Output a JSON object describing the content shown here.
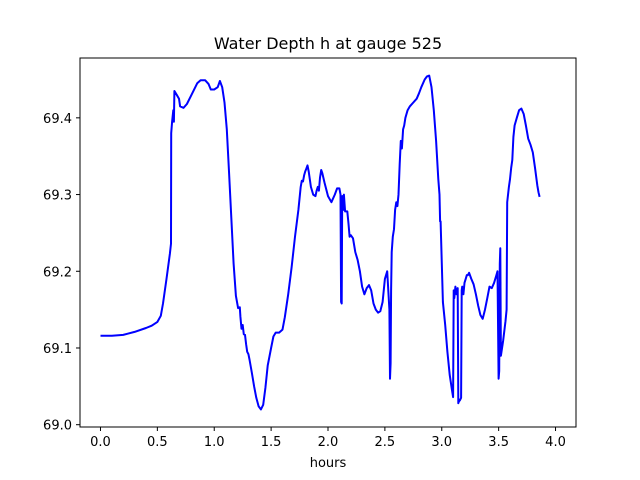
{
  "chart_data": {
    "type": "line",
    "title": "Water Depth h at gauge 525",
    "xlabel": "hours",
    "ylabel": "",
    "xlim": [
      -0.18,
      4.18
    ],
    "ylim": [
      68.997,
      69.478
    ],
    "xticks": [
      0.0,
      0.5,
      1.0,
      1.5,
      2.0,
      2.5,
      3.0,
      3.5,
      4.0
    ],
    "xtick_labels": [
      "0.0",
      "0.5",
      "1.0",
      "1.5",
      "2.0",
      "2.5",
      "3.0",
      "3.5",
      "4.0"
    ],
    "yticks": [
      69.0,
      69.1,
      69.2,
      69.3,
      69.4
    ],
    "ytick_labels": [
      "69.0",
      "69.1",
      "69.2",
      "69.3",
      "69.4"
    ],
    "grid": false,
    "color": "#0000ff",
    "series": [
      {
        "points": [
          [
            0.0,
            69.116
          ],
          [
            0.1,
            69.116
          ],
          [
            0.2,
            69.117
          ],
          [
            0.3,
            69.121
          ],
          [
            0.4,
            69.126
          ],
          [
            0.45,
            69.129
          ],
          [
            0.5,
            69.134
          ],
          [
            0.53,
            69.142
          ],
          [
            0.55,
            69.158
          ],
          [
            0.58,
            69.19
          ],
          [
            0.61,
            69.223
          ],
          [
            0.62,
            69.236
          ],
          [
            0.622,
            69.38
          ],
          [
            0.63,
            69.395
          ],
          [
            0.64,
            69.41
          ],
          [
            0.645,
            69.395
          ],
          [
            0.65,
            69.435
          ],
          [
            0.67,
            69.43
          ],
          [
            0.69,
            69.425
          ],
          [
            0.7,
            69.415
          ],
          [
            0.73,
            69.413
          ],
          [
            0.76,
            69.418
          ],
          [
            0.8,
            69.43
          ],
          [
            0.85,
            69.445
          ],
          [
            0.88,
            69.449
          ],
          [
            0.92,
            69.449
          ],
          [
            0.95,
            69.444
          ],
          [
            0.97,
            69.437
          ],
          [
            1.0,
            69.437
          ],
          [
            1.03,
            69.44
          ],
          [
            1.05,
            69.448
          ],
          [
            1.07,
            69.44
          ],
          [
            1.09,
            69.42
          ],
          [
            1.11,
            69.385
          ],
          [
            1.13,
            69.33
          ],
          [
            1.15,
            69.27
          ],
          [
            1.17,
            69.21
          ],
          [
            1.19,
            69.168
          ],
          [
            1.21,
            69.152
          ],
          [
            1.225,
            69.153
          ],
          [
            1.23,
            69.141
          ],
          [
            1.24,
            69.125
          ],
          [
            1.25,
            69.13
          ],
          [
            1.26,
            69.118
          ],
          [
            1.27,
            69.117
          ],
          [
            1.28,
            69.105
          ],
          [
            1.29,
            69.095
          ],
          [
            1.3,
            69.092
          ],
          [
            1.31,
            69.085
          ],
          [
            1.33,
            69.068
          ],
          [
            1.35,
            69.05
          ],
          [
            1.37,
            69.035
          ],
          [
            1.39,
            69.024
          ],
          [
            1.41,
            69.02
          ],
          [
            1.43,
            69.026
          ],
          [
            1.45,
            69.048
          ],
          [
            1.47,
            69.077
          ],
          [
            1.5,
            69.1
          ],
          [
            1.52,
            69.115
          ],
          [
            1.54,
            69.12
          ],
          [
            1.57,
            69.12
          ],
          [
            1.6,
            69.124
          ],
          [
            1.62,
            69.14
          ],
          [
            1.65,
            69.17
          ],
          [
            1.68,
            69.205
          ],
          [
            1.71,
            69.245
          ],
          [
            1.74,
            69.28
          ],
          [
            1.76,
            69.31
          ],
          [
            1.77,
            69.318
          ],
          [
            1.78,
            69.317
          ],
          [
            1.79,
            69.325
          ],
          [
            1.8,
            69.33
          ],
          [
            1.81,
            69.334
          ],
          [
            1.82,
            69.338
          ],
          [
            1.83,
            69.33
          ],
          [
            1.85,
            69.31
          ],
          [
            1.87,
            69.3
          ],
          [
            1.89,
            69.298
          ],
          [
            1.9,
            69.305
          ],
          [
            1.91,
            69.31
          ],
          [
            1.92,
            69.305
          ],
          [
            1.93,
            69.322
          ],
          [
            1.94,
            69.332
          ],
          [
            1.95,
            69.328
          ],
          [
            1.97,
            69.315
          ],
          [
            2.0,
            69.298
          ],
          [
            2.03,
            69.29
          ],
          [
            2.06,
            69.3
          ],
          [
            2.08,
            69.308
          ],
          [
            2.1,
            69.308
          ],
          [
            2.11,
            69.3
          ],
          [
            2.115,
            69.16
          ],
          [
            2.12,
            69.158
          ],
          [
            2.125,
            69.298
          ],
          [
            2.13,
            69.298
          ],
          [
            2.135,
            69.28
          ],
          [
            2.14,
            69.3
          ],
          [
            2.15,
            69.278
          ],
          [
            2.17,
            69.278
          ],
          [
            2.18,
            69.262
          ],
          [
            2.19,
            69.245
          ],
          [
            2.2,
            69.247
          ],
          [
            2.22,
            69.243
          ],
          [
            2.24,
            69.225
          ],
          [
            2.26,
            69.215
          ],
          [
            2.28,
            69.2
          ],
          [
            2.3,
            69.18
          ],
          [
            2.32,
            69.17
          ],
          [
            2.34,
            69.178
          ],
          [
            2.36,
            69.182
          ],
          [
            2.38,
            69.175
          ],
          [
            2.4,
            69.158
          ],
          [
            2.42,
            69.15
          ],
          [
            2.44,
            69.146
          ],
          [
            2.46,
            69.148
          ],
          [
            2.48,
            69.16
          ],
          [
            2.5,
            69.19
          ],
          [
            2.52,
            69.2
          ],
          [
            2.54,
            69.15
          ],
          [
            2.545,
            69.06
          ],
          [
            2.55,
            69.08
          ],
          [
            2.555,
            69.175
          ],
          [
            2.56,
            69.225
          ],
          [
            2.57,
            69.245
          ],
          [
            2.58,
            69.255
          ],
          [
            2.59,
            69.28
          ],
          [
            2.6,
            69.29
          ],
          [
            2.61,
            69.285
          ],
          [
            2.62,
            69.3
          ],
          [
            2.63,
            69.34
          ],
          [
            2.64,
            69.37
          ],
          [
            2.65,
            69.36
          ],
          [
            2.66,
            69.385
          ],
          [
            2.67,
            69.39
          ],
          [
            2.68,
            69.4
          ],
          [
            2.7,
            69.41
          ],
          [
            2.72,
            69.415
          ],
          [
            2.75,
            69.42
          ],
          [
            2.78,
            69.425
          ],
          [
            2.8,
            69.432
          ],
          [
            2.82,
            69.44
          ],
          [
            2.85,
            69.45
          ],
          [
            2.87,
            69.454
          ],
          [
            2.89,
            69.455
          ],
          [
            2.91,
            69.44
          ],
          [
            2.93,
            69.41
          ],
          [
            2.95,
            69.37
          ],
          [
            2.97,
            69.32
          ],
          [
            2.98,
            69.3
          ],
          [
            2.985,
            69.265
          ],
          [
            2.99,
            69.265
          ],
          [
            3.0,
            69.21
          ],
          [
            3.01,
            69.16
          ],
          [
            3.03,
            69.13
          ],
          [
            3.05,
            69.095
          ],
          [
            3.07,
            69.065
          ],
          [
            3.09,
            69.045
          ],
          [
            3.1,
            69.036
          ],
          [
            3.105,
            69.175
          ],
          [
            3.11,
            69.165
          ],
          [
            3.12,
            69.18
          ],
          [
            3.13,
            69.17
          ],
          [
            3.14,
            69.178
          ],
          [
            3.145,
            69.028
          ],
          [
            3.15,
            69.03
          ],
          [
            3.16,
            69.032
          ],
          [
            3.17,
            69.035
          ],
          [
            3.175,
            69.175
          ],
          [
            3.18,
            69.18
          ],
          [
            3.19,
            69.17
          ],
          [
            3.2,
            69.185
          ],
          [
            3.21,
            69.19
          ],
          [
            3.22,
            69.195
          ],
          [
            3.23,
            69.195
          ],
          [
            3.24,
            69.198
          ],
          [
            3.26,
            69.19
          ],
          [
            3.28,
            69.183
          ],
          [
            3.3,
            69.17
          ],
          [
            3.32,
            69.155
          ],
          [
            3.34,
            69.143
          ],
          [
            3.36,
            69.138
          ],
          [
            3.38,
            69.15
          ],
          [
            3.4,
            69.165
          ],
          [
            3.42,
            69.18
          ],
          [
            3.44,
            69.178
          ],
          [
            3.46,
            69.185
          ],
          [
            3.48,
            69.195
          ],
          [
            3.49,
            69.2
          ],
          [
            3.5,
            69.06
          ],
          [
            3.505,
            69.07
          ],
          [
            3.51,
            69.21
          ],
          [
            3.515,
            69.23
          ],
          [
            3.52,
            69.09
          ],
          [
            3.54,
            69.11
          ],
          [
            3.56,
            69.135
          ],
          [
            3.57,
            69.15
          ],
          [
            3.575,
            69.29
          ],
          [
            3.59,
            69.31
          ],
          [
            3.6,
            69.32
          ],
          [
            3.61,
            69.335
          ],
          [
            3.62,
            69.345
          ],
          [
            3.63,
            69.375
          ],
          [
            3.64,
            69.39
          ],
          [
            3.66,
            69.4
          ],
          [
            3.68,
            69.41
          ],
          [
            3.7,
            69.412
          ],
          [
            3.72,
            69.405
          ],
          [
            3.74,
            69.39
          ],
          [
            3.76,
            69.373
          ],
          [
            3.78,
            69.365
          ],
          [
            3.8,
            69.355
          ],
          [
            3.82,
            69.335
          ],
          [
            3.84,
            69.312
          ],
          [
            3.85,
            69.303
          ],
          [
            3.86,
            69.297
          ]
        ]
      }
    ]
  }
}
